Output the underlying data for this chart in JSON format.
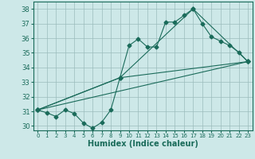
{
  "xlabel": "Humidex (Indice chaleur)",
  "background_color": "#cde8e8",
  "grid_color": "#9bbcbc",
  "line_color": "#1a6b5a",
  "xlim": [
    -0.5,
    23.5
  ],
  "ylim": [
    29.7,
    38.5
  ],
  "yticks": [
    30,
    31,
    32,
    33,
    34,
    35,
    36,
    37,
    38
  ],
  "xticks": [
    0,
    1,
    2,
    3,
    4,
    5,
    6,
    7,
    8,
    9,
    10,
    11,
    12,
    13,
    14,
    15,
    16,
    17,
    18,
    19,
    20,
    21,
    22,
    23
  ],
  "line1_x": [
    0,
    1,
    2,
    3,
    4,
    5,
    6,
    7,
    8,
    9,
    10,
    11,
    12,
    13,
    14,
    15,
    16,
    17,
    18,
    19,
    20,
    21,
    22,
    23
  ],
  "line1_y": [
    31.1,
    30.9,
    30.65,
    31.1,
    30.85,
    30.2,
    29.85,
    30.25,
    31.1,
    33.3,
    35.5,
    35.95,
    35.4,
    35.4,
    37.1,
    37.1,
    37.55,
    38.0,
    37.0,
    36.1,
    35.8,
    35.5,
    35.05,
    34.4
  ],
  "line2_x": [
    0,
    23
  ],
  "line2_y": [
    31.1,
    34.4
  ],
  "line3_x": [
    0,
    9,
    23
  ],
  "line3_y": [
    31.1,
    33.3,
    34.4
  ],
  "line4_x": [
    0,
    9,
    17,
    23
  ],
  "line4_y": [
    31.1,
    33.3,
    38.0,
    34.4
  ]
}
